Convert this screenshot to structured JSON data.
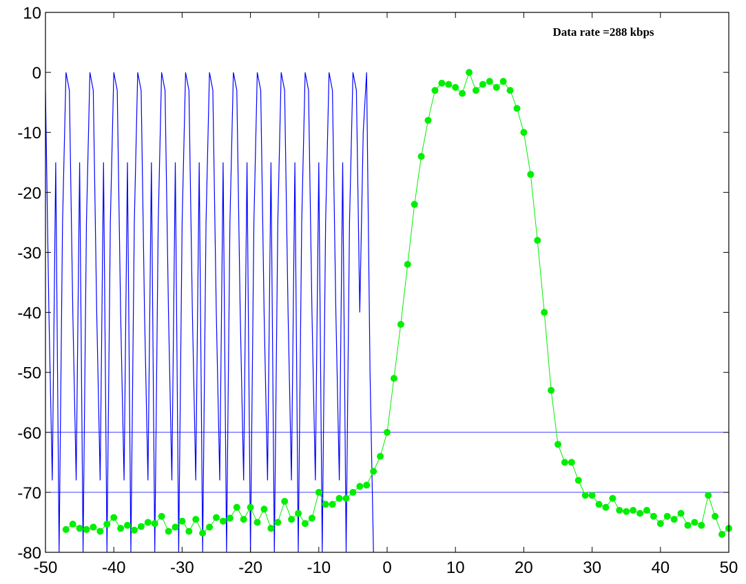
{
  "chart_data": {
    "type": "line",
    "annotation": "Data rate =288 kbps",
    "xlim": [
      -50,
      50
    ],
    "xticks": [
      -50,
      -40,
      -30,
      -20,
      -10,
      0,
      10,
      20,
      30,
      40,
      50
    ],
    "ylim": [
      -80,
      10
    ],
    "yticks": [
      -80,
      -70,
      -60,
      -50,
      -40,
      -30,
      -20,
      -10,
      0,
      10
    ],
    "hlines": {
      "color": "#0000ff",
      "values": [
        -60,
        -70
      ]
    },
    "series": [
      {
        "color": "#0000ff",
        "marker": false,
        "x": [
          -50,
          -49.5,
          -49,
          -48.5,
          -48,
          -47.5,
          -47,
          -46.5,
          -46,
          -45.5,
          -45,
          -44.5,
          -44,
          -43.5,
          -43,
          -42.5,
          -42,
          -41.5,
          -41,
          -40.5,
          -40,
          -39.5,
          -39,
          -38.5,
          -38,
          -37.5,
          -37,
          -36.5,
          -36,
          -35.5,
          -35,
          -34.5,
          -34,
          -33.5,
          -33,
          -32.5,
          -32,
          -31.5,
          -31,
          -30.5,
          -30,
          -29.5,
          -29,
          -28.5,
          -28,
          -27.5,
          -27,
          -26.5,
          -26,
          -25.5,
          -25,
          -24.5,
          -24,
          -23.5,
          -23,
          -22.5,
          -22,
          -21.5,
          -21,
          -20.5,
          -20,
          -19.5,
          -19,
          -18.5,
          -18,
          -17.5,
          -17,
          -16.5,
          -16,
          -15.5,
          -15,
          -14.5,
          -14,
          -13.5,
          -13,
          -12.5,
          -12,
          -11.5,
          -11,
          -10.5,
          -10,
          -9.5,
          -9,
          -8.5,
          -8,
          -7.5,
          -7,
          -6.5,
          -6,
          -5.5,
          -5,
          -4.5,
          -4,
          -3.5,
          -3,
          -2.5,
          -2
        ],
        "values": [
          -3,
          -40,
          -68,
          -15,
          -80,
          -25,
          0,
          -3,
          -40,
          -68,
          -15,
          -80,
          -25,
          0,
          -3,
          -40,
          -68,
          -15,
          -80,
          -25,
          0,
          -3,
          -40,
          -68,
          -15,
          -80,
          -25,
          0,
          -3,
          -40,
          -68,
          -15,
          -80,
          -25,
          0,
          -3,
          -40,
          -68,
          -15,
          -80,
          -25,
          0,
          -3,
          -40,
          -68,
          -15,
          -80,
          -25,
          0,
          -3,
          -40,
          -68,
          -15,
          -80,
          -25,
          0,
          -3,
          -40,
          -68,
          -15,
          -80,
          -25,
          0,
          -3,
          -40,
          -68,
          -15,
          -80,
          -25,
          0,
          -3,
          -40,
          -68,
          -15,
          -80,
          -25,
          0,
          -3,
          -40,
          -68,
          -15,
          -80,
          -25,
          0,
          -3,
          -40,
          -68,
          -15,
          -80,
          -25,
          0,
          -3,
          -40,
          -10,
          0,
          -50,
          -80
        ]
      },
      {
        "color": "#00ee00",
        "marker": true,
        "x": [
          -47,
          -46,
          -45,
          -44,
          -43,
          -42,
          -41,
          -40,
          -39,
          -38,
          -37,
          -36,
          -35,
          -34,
          -33,
          -32,
          -31,
          -30,
          -29,
          -28,
          -27,
          -26,
          -25,
          -24,
          -23,
          -22,
          -21,
          -20,
          -19,
          -18,
          -17,
          -16,
          -15,
          -14,
          -13,
          -12,
          -11,
          -10,
          -9,
          -8,
          -7,
          -6,
          -5,
          -4,
          -3,
          -2,
          -1,
          0,
          1,
          2,
          3,
          4,
          5,
          6,
          7,
          8,
          9,
          10,
          11,
          12,
          13,
          14,
          15,
          16,
          17,
          18,
          19,
          20,
          21,
          22,
          23,
          24,
          25,
          26,
          27,
          28,
          29,
          30,
          31,
          32,
          33,
          34,
          35,
          36,
          37,
          38,
          39,
          40,
          41,
          42,
          43,
          44,
          45,
          46,
          47,
          48,
          49,
          50
        ],
        "values": [
          -76.2,
          -75.3,
          -76,
          -76.2,
          -75.8,
          -76.5,
          -75.3,
          -74.2,
          -76,
          -75.5,
          -76.3,
          -75.7,
          -75,
          -75.2,
          -74,
          -76.5,
          -75.8,
          -74.8,
          -76.5,
          -74.5,
          -76.8,
          -75.8,
          -74.2,
          -74.8,
          -74.3,
          -72.5,
          -74.5,
          -72.5,
          -75,
          -72.8,
          -76,
          -75,
          -71.5,
          -74.5,
          -73.5,
          -75.2,
          -74.3,
          -70,
          -72,
          -72,
          -71,
          -71,
          -70,
          -69,
          -68.8,
          -66.5,
          -64,
          -60,
          -51,
          -42,
          -32,
          -22,
          -14,
          -8,
          -3,
          -1.8,
          -2,
          -2.5,
          -3.5,
          0,
          -3,
          -2,
          -1.5,
          -2.5,
          -1.5,
          -3,
          -6,
          -10,
          -17,
          -28,
          -40,
          -53,
          -62,
          -65,
          -65,
          -68,
          -70.5,
          -70.5,
          -72,
          -72.5,
          -71,
          -73,
          -73.2,
          -73,
          -73.5,
          -73,
          -74,
          -75.2,
          -74,
          -74.5,
          -73.5,
          -75.5,
          -75,
          -75.5,
          -70.5,
          -74,
          -77,
          -76
        ]
      }
    ]
  }
}
